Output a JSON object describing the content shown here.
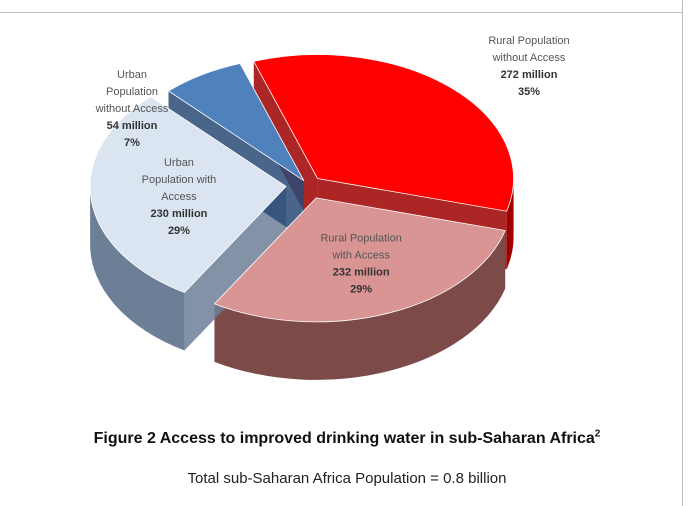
{
  "chart_data": {
    "type": "pie",
    "style": "3d-exploded",
    "slices": [
      {
        "label": [
          "Rural Population",
          "without Access"
        ],
        "value_text": "272 million",
        "percent_text": "35%",
        "value": 272,
        "percent": 35,
        "color": "#ff0000",
        "side_color": "#9e0000"
      },
      {
        "label": [
          "Rural Population",
          "with Access"
        ],
        "value_text": "232 million",
        "percent_text": "29%",
        "value": 232,
        "percent": 29,
        "color": "#d99594",
        "side_color": "#7b4a49"
      },
      {
        "label": [
          "Urban",
          "Population with",
          "Access"
        ],
        "value_text": "230 million",
        "percent_text": "29%",
        "value": 230,
        "percent": 29,
        "color": "#dbe5f1",
        "side_color": "#6d7f96"
      },
      {
        "label": [
          "Urban",
          "Population",
          "without Access"
        ],
        "value_text": "54 million",
        "percent_text": "7%",
        "value": 54,
        "percent": 7,
        "color": "#4f81bd",
        "side_color": "#2a4a75"
      }
    ]
  },
  "caption": {
    "text": "Figure 2 Access to improved drinking water in sub-Saharan Africa",
    "superscript": "2"
  },
  "note": "Total sub-Saharan Africa Population = 0.8 billion"
}
